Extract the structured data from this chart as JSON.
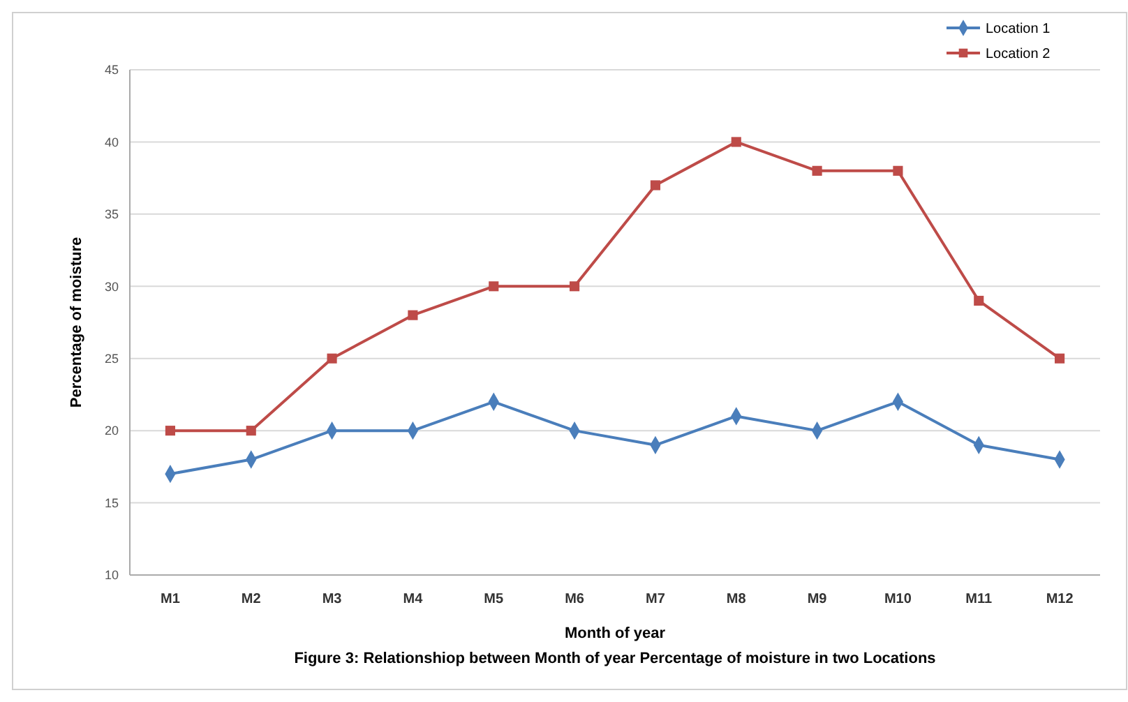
{
  "chart_data": {
    "type": "line",
    "xlabel": "Month of year",
    "ylabel": "Percentage of moisture",
    "categories": [
      "M1",
      "M2",
      "M3",
      "M4",
      "M5",
      "M6",
      "M7",
      "M8",
      "M9",
      "M10",
      "M11",
      "M12"
    ],
    "series": [
      {
        "name": "Location 1",
        "color": "#4a7ebb",
        "marker": "diamond",
        "values": [
          17,
          18,
          20,
          20,
          22,
          20,
          19,
          21,
          20,
          22,
          19,
          18
        ]
      },
      {
        "name": "Location 2",
        "color": "#be4b48",
        "marker": "square",
        "values": [
          20,
          20,
          25,
          28,
          30,
          30,
          37,
          40,
          38,
          38,
          29,
          25
        ]
      }
    ],
    "ylim": [
      10,
      45
    ],
    "yticks": [
      10,
      15,
      20,
      25,
      30,
      35,
      40,
      45
    ],
    "grid": "y",
    "legend": "top right",
    "line_style": "solid",
    "annotations": [
      "Figure 3: Relationshiop between Month of year Percentage of moisture in two Locations"
    ]
  }
}
